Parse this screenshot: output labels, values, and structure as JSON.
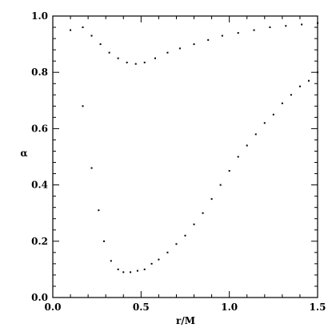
{
  "chart_data": {
    "type": "scatter",
    "xlabel": "r/M",
    "ylabel": "α",
    "xlim": [
      0.0,
      1.5
    ],
    "ylim": [
      0.0,
      1.0
    ],
    "x_ticks": [
      {
        "value": 0.0,
        "label": "0.0"
      },
      {
        "value": 0.5,
        "label": "0.5"
      },
      {
        "value": 1.0,
        "label": "1.0"
      },
      {
        "value": 1.5,
        "label": "1.5"
      }
    ],
    "y_ticks": [
      {
        "value": 0.0,
        "label": "0.0"
      },
      {
        "value": 0.2,
        "label": "0.2"
      },
      {
        "value": 0.4,
        "label": "0.4"
      },
      {
        "value": 0.6,
        "label": "0.6"
      },
      {
        "value": 0.8,
        "label": "0.8"
      },
      {
        "value": 1.0,
        "label": "1.0"
      }
    ],
    "grid": false,
    "marker_color": "#000000",
    "series": [
      {
        "x": [
          0.1,
          0.17,
          0.22,
          0.27,
          0.32,
          0.37,
          0.42,
          0.47,
          0.52,
          0.58,
          0.65,
          0.72,
          0.8,
          0.88,
          0.96,
          1.05,
          1.14,
          1.23,
          1.32,
          1.41,
          1.5
        ],
        "y": [
          0.95,
          0.96,
          0.93,
          0.9,
          0.87,
          0.85,
          0.835,
          0.83,
          0.835,
          0.85,
          0.87,
          0.885,
          0.9,
          0.915,
          0.93,
          0.94,
          0.95,
          0.96,
          0.965,
          0.97,
          0.975
        ]
      },
      {
        "x": [
          0.17,
          0.22,
          0.26,
          0.29,
          0.33,
          0.37,
          0.4,
          0.44,
          0.48,
          0.52,
          0.56,
          0.6,
          0.65,
          0.7,
          0.75,
          0.8,
          0.85,
          0.9,
          0.95,
          1.0,
          1.05,
          1.1,
          1.15,
          1.2,
          1.25,
          1.3,
          1.35,
          1.4,
          1.45,
          1.5
        ],
        "y": [
          0.68,
          0.46,
          0.31,
          0.2,
          0.13,
          0.1,
          0.09,
          0.09,
          0.095,
          0.1,
          0.12,
          0.135,
          0.16,
          0.19,
          0.22,
          0.26,
          0.3,
          0.35,
          0.4,
          0.45,
          0.5,
          0.54,
          0.58,
          0.62,
          0.65,
          0.69,
          0.72,
          0.75,
          0.77,
          0.8
        ]
      }
    ]
  }
}
